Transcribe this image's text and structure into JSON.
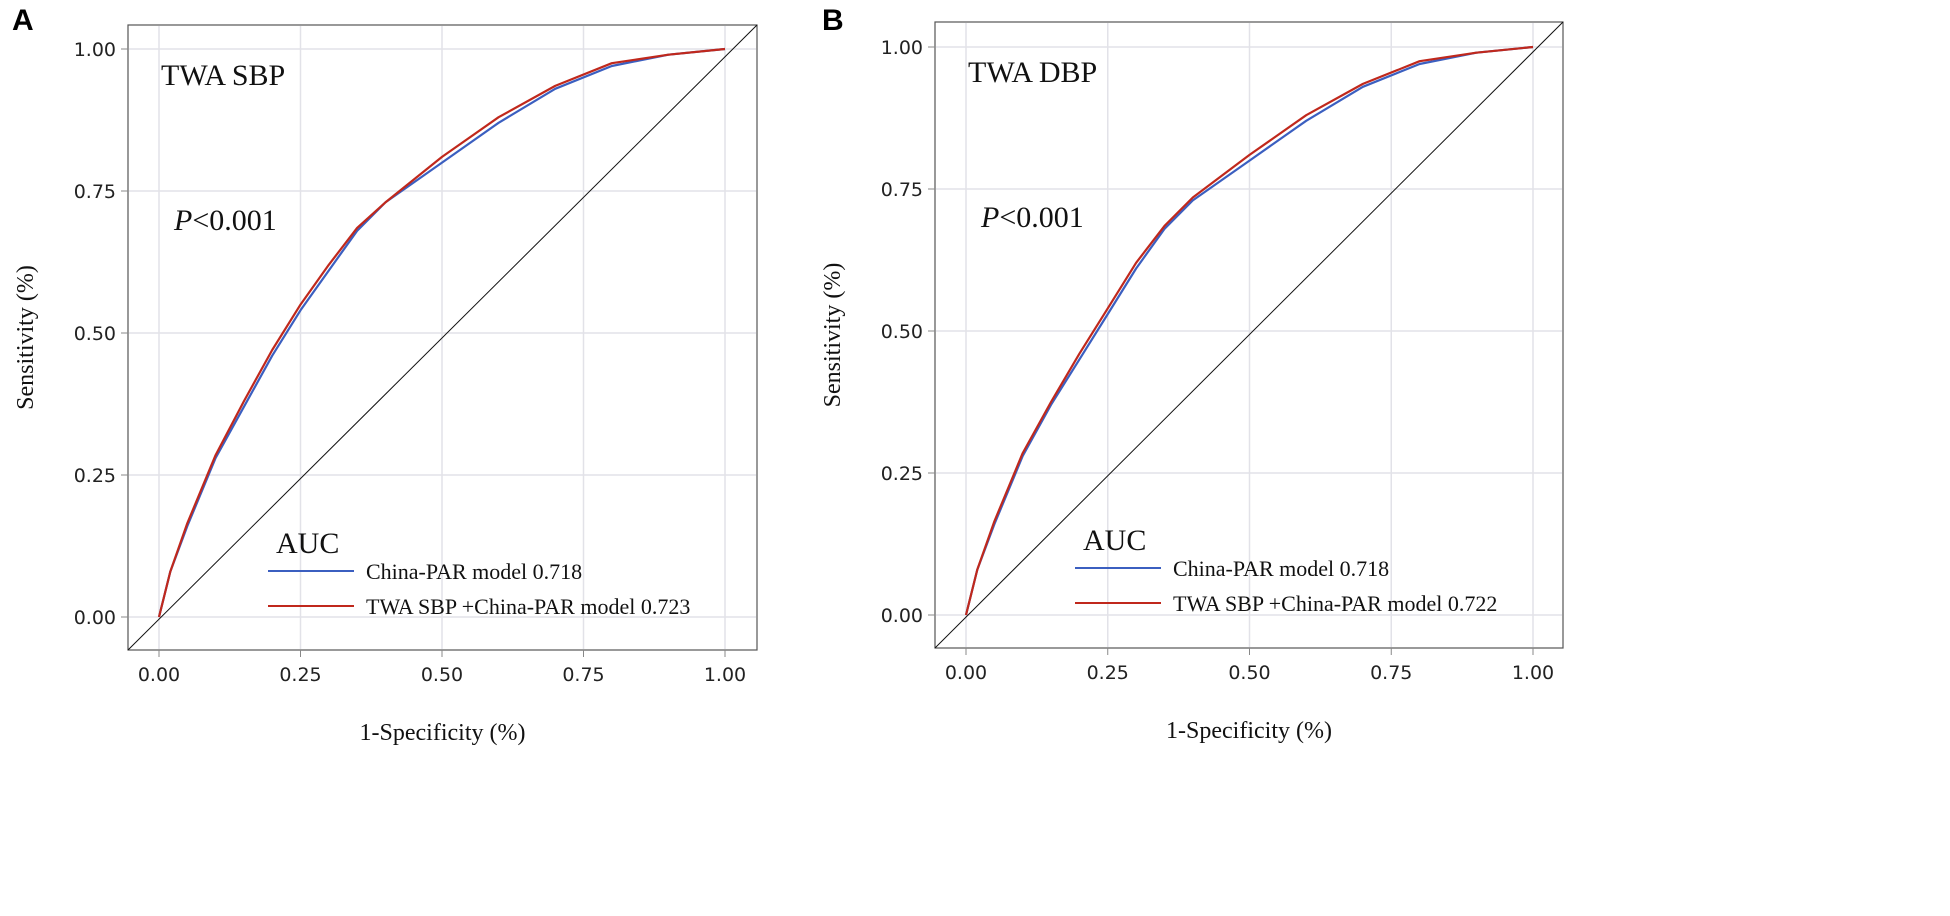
{
  "chart_data": [
    {
      "type": "line",
      "panel_label": "A",
      "annotation": "TWA SBP",
      "p_value_prefix": "P",
      "p_value_rest": "<0.001",
      "xlabel": "1-Specificity (%)",
      "ylabel": "Sensitivity (%)",
      "xlim": [
        0,
        1
      ],
      "ylim": [
        0,
        1
      ],
      "xticks": [
        "0.00",
        "0.25",
        "0.50",
        "0.75",
        "1.00"
      ],
      "yticks": [
        "0.00",
        "0.25",
        "0.50",
        "0.75",
        "1.00"
      ],
      "grid": true,
      "legend_title": "AUC",
      "legend_position": "bottom-right",
      "series": [
        {
          "name": "China-PAR model 0.718",
          "color": "#3b5fc0",
          "x": [
            0,
            0.02,
            0.05,
            0.1,
            0.15,
            0.2,
            0.25,
            0.3,
            0.35,
            0.4,
            0.5,
            0.6,
            0.7,
            0.8,
            0.9,
            1
          ],
          "y": [
            0,
            0.08,
            0.16,
            0.28,
            0.37,
            0.46,
            0.54,
            0.61,
            0.68,
            0.73,
            0.8,
            0.87,
            0.93,
            0.97,
            0.99,
            1
          ]
        },
        {
          "name": "TWA SBP +China-PAR model 0.723",
          "color": "#c0281c",
          "x": [
            0,
            0.02,
            0.05,
            0.1,
            0.15,
            0.2,
            0.25,
            0.3,
            0.35,
            0.4,
            0.5,
            0.6,
            0.7,
            0.8,
            0.9,
            1
          ],
          "y": [
            0,
            0.08,
            0.165,
            0.285,
            0.38,
            0.47,
            0.55,
            0.62,
            0.685,
            0.73,
            0.81,
            0.88,
            0.935,
            0.975,
            0.99,
            1
          ]
        }
      ]
    },
    {
      "type": "line",
      "panel_label": "B",
      "annotation": "TWA DBP",
      "p_value_prefix": "P",
      "p_value_rest": "<0.001",
      "xlabel": "1-Specificity (%)",
      "ylabel": "Sensitivity (%)",
      "xlim": [
        0,
        1
      ],
      "ylim": [
        0,
        1
      ],
      "xticks": [
        "0.00",
        "0.25",
        "0.50",
        "0.75",
        "1.00"
      ],
      "yticks": [
        "0.00",
        "0.25",
        "0.50",
        "0.75",
        "1.00"
      ],
      "grid": true,
      "legend_title": "AUC",
      "legend_position": "bottom-right",
      "series": [
        {
          "name": "China-PAR model 0.718",
          "color": "#3b5fc0",
          "x": [
            0,
            0.02,
            0.05,
            0.1,
            0.15,
            0.2,
            0.25,
            0.3,
            0.35,
            0.4,
            0.5,
            0.6,
            0.7,
            0.8,
            0.9,
            1
          ],
          "y": [
            0,
            0.08,
            0.16,
            0.28,
            0.37,
            0.45,
            0.53,
            0.61,
            0.68,
            0.73,
            0.8,
            0.87,
            0.93,
            0.97,
            0.99,
            1
          ]
        },
        {
          "name": "TWA SBP +China-PAR model 0.722",
          "color": "#c0281c",
          "x": [
            0,
            0.02,
            0.05,
            0.1,
            0.15,
            0.2,
            0.25,
            0.3,
            0.35,
            0.4,
            0.5,
            0.6,
            0.7,
            0.8,
            0.9,
            1
          ],
          "y": [
            0,
            0.08,
            0.165,
            0.285,
            0.375,
            0.46,
            0.54,
            0.62,
            0.685,
            0.735,
            0.81,
            0.88,
            0.935,
            0.975,
            0.99,
            1
          ]
        }
      ]
    }
  ]
}
